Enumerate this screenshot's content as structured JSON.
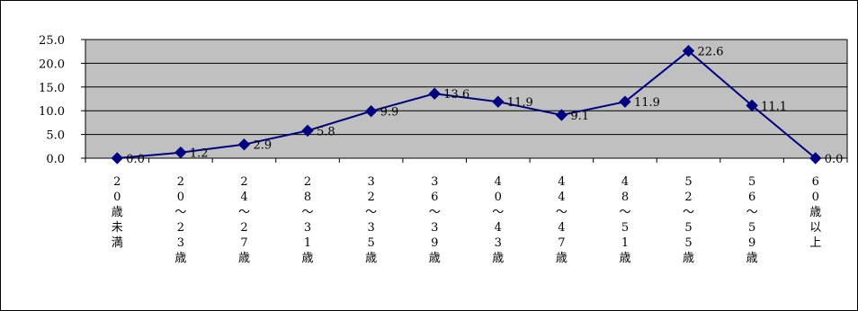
{
  "chart_data": {
    "type": "line",
    "categories": [
      "20歳未満",
      "20～23歳",
      "24～27歳",
      "28～31歳",
      "32～35歳",
      "36～39歳",
      "40～43歳",
      "44～47歳",
      "48～51歳",
      "52～55歳",
      "56～59歳",
      "60歳以上"
    ],
    "series": [
      {
        "values": [
          0.0,
          1.2,
          2.9,
          5.8,
          9.9,
          13.6,
          11.9,
          9.1,
          11.9,
          22.6,
          11.1,
          0.0
        ]
      }
    ],
    "data_labels": [
      "0.0",
      "1.2",
      "2.9",
      "5.8",
      "9.9",
      "13.6",
      "11.9",
      "9.1",
      "11.9",
      "22.6",
      "11.1",
      "0.0"
    ],
    "y_tick_labels": [
      "25.0",
      "20.0",
      "15.0",
      "10.0",
      "5.0",
      "0.0"
    ],
    "ylim": [
      0,
      25
    ],
    "grid": true,
    "colors": {
      "line": "#000080",
      "plot_area": "#c0c0c0",
      "grid": "#000000",
      "border": "#000000",
      "background": "#ffffff"
    }
  }
}
